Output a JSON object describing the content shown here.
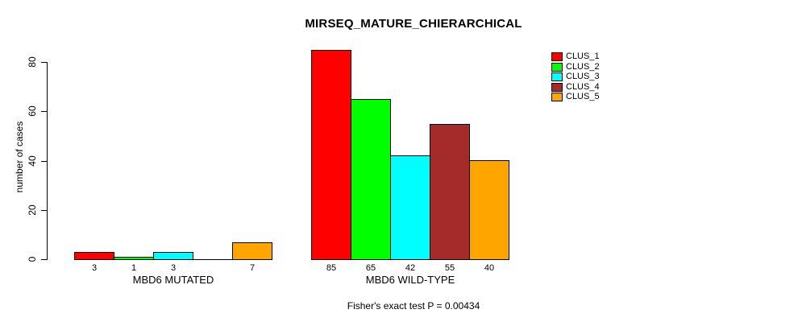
{
  "title": "MIRSEQ_MATURE_CHIERARCHICAL",
  "footer": "Fisher's exact test P = 0.00434",
  "chart_data": {
    "type": "bar",
    "title": "MIRSEQ_MATURE_CHIERARCHICAL",
    "xlabel": "",
    "ylabel": "number of cases",
    "ylim": [
      0,
      85
    ],
    "yticks": [
      0,
      20,
      40,
      60,
      80
    ],
    "grid": false,
    "legend_position": "top-right",
    "categories": [
      "MBD6 MUTATED",
      "MBD6 WILD-TYPE"
    ],
    "series": [
      {
        "name": "CLUS_1",
        "color": "#FF0000",
        "values": [
          3,
          85
        ]
      },
      {
        "name": "CLUS_2",
        "color": "#00FF00",
        "values": [
          1,
          65
        ]
      },
      {
        "name": "CLUS_3",
        "color": "#00FFFF",
        "values": [
          3,
          42
        ]
      },
      {
        "name": "CLUS_4",
        "color": "#A52A2A",
        "values": [
          0,
          55
        ]
      },
      {
        "name": "CLUS_5",
        "color": "#FFA500",
        "values": [
          7,
          40
        ]
      }
    ],
    "bar_value_labels_shown": true,
    "zero_value_labels_hidden": true,
    "annotation": "Fisher's exact test P = 0.00434"
  }
}
